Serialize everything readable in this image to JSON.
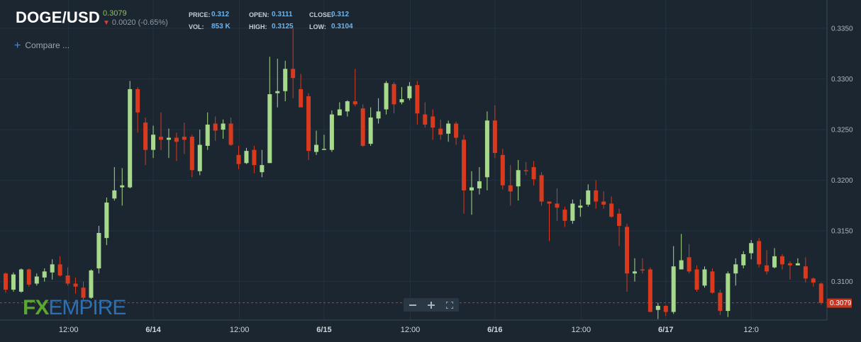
{
  "header": {
    "symbol": "DOGE/USD",
    "last_price": "0.3079",
    "change": "0.0020 (-0.65%)",
    "price_label": "PRICE:",
    "price_value": "0.312",
    "open_label": "OPEN:",
    "open_value": "0.3111",
    "close_label": "CLOSE:",
    "close_value": "0.312",
    "vol_label": "VOL:",
    "vol_value": "853 K",
    "high_label": "HIGH:",
    "high_value": "0.3125",
    "low_label": "LOW:",
    "low_value": "0.3104"
  },
  "compare_label": "Compare ...",
  "logo": {
    "fx": "FX",
    "empire": "EMPIRE"
  },
  "zoom": {
    "minus_icon": "minus-icon",
    "plus_icon": "plus-icon",
    "fit_icon": "fullscreen-icon"
  },
  "colors": {
    "background": "#1b2631",
    "grid": "#243240",
    "up": "#a6d98b",
    "down": "#d93a1e",
    "axis_text": "#aab4bd",
    "price_line": "#c0392b",
    "price_tag": "#c8341e"
  },
  "chart_data": {
    "type": "candlestick",
    "ylim": [
      0.3062,
      0.3378
    ],
    "yticks": [
      "0.3100",
      "0.3150",
      "0.3200",
      "0.3250",
      "0.3300",
      "0.3350"
    ],
    "xticks": [
      "12:00",
      "6/14",
      "12:00",
      "6/15",
      "12:00",
      "6/16",
      "12:00",
      "6/17",
      "12:0"
    ],
    "xtick_index": [
      8.1,
      19,
      30.1,
      41,
      52.1,
      63,
      74.1,
      85,
      96
    ],
    "last_price_label": "0.3079",
    "last_price_value": 0.3079,
    "candles": [
      [
        0.3108,
        0.3092,
        0.3109,
        0.3089
      ],
      [
        0.3092,
        0.3107,
        0.3109,
        0.309
      ],
      [
        0.309,
        0.3112,
        0.3113,
        0.3089
      ],
      [
        0.3112,
        0.3097,
        0.3113,
        0.3095
      ],
      [
        0.3098,
        0.3105,
        0.3108,
        0.3096
      ],
      [
        0.3104,
        0.311,
        0.3113,
        0.31
      ],
      [
        0.3109,
        0.3117,
        0.3122,
        0.3102
      ],
      [
        0.3117,
        0.3106,
        0.3125,
        0.3105
      ],
      [
        0.3106,
        0.3098,
        0.3114,
        0.3096
      ],
      [
        0.3098,
        0.3095,
        0.3104,
        0.3088
      ],
      [
        0.3094,
        0.3084,
        0.31,
        0.3082
      ],
      [
        0.3084,
        0.3111,
        0.3112,
        0.3083
      ],
      [
        0.3113,
        0.3148,
        0.3155,
        0.3108
      ],
      [
        0.3143,
        0.3178,
        0.3183,
        0.3136
      ],
      [
        0.3182,
        0.319,
        0.3213,
        0.318
      ],
      [
        0.3193,
        0.3195,
        0.3212,
        0.3175
      ],
      [
        0.3193,
        0.329,
        0.3298,
        0.3192
      ],
      [
        0.329,
        0.3267,
        0.3292,
        0.3247
      ],
      [
        0.3257,
        0.323,
        0.3262,
        0.3215
      ],
      [
        0.323,
        0.3245,
        0.3254,
        0.3222
      ],
      [
        0.3243,
        0.324,
        0.3267,
        0.323
      ],
      [
        0.324,
        0.3242,
        0.3251,
        0.3222
      ],
      [
        0.3242,
        0.3238,
        0.3247,
        0.3219
      ],
      [
        0.3243,
        0.324,
        0.3257,
        0.3226
      ],
      [
        0.3243,
        0.321,
        0.3245,
        0.3203
      ],
      [
        0.3209,
        0.3235,
        0.325,
        0.3205
      ],
      [
        0.3234,
        0.3255,
        0.3267,
        0.323
      ],
      [
        0.3256,
        0.3249,
        0.3263,
        0.3239
      ],
      [
        0.325,
        0.3256,
        0.326,
        0.3241
      ],
      [
        0.3256,
        0.3235,
        0.3262,
        0.3234
      ],
      [
        0.3225,
        0.3216,
        0.3234,
        0.3211
      ],
      [
        0.3217,
        0.3229,
        0.3232,
        0.3216
      ],
      [
        0.323,
        0.3215,
        0.3234,
        0.3207
      ],
      [
        0.3208,
        0.3215,
        0.323,
        0.3203
      ],
      [
        0.3217,
        0.3285,
        0.3322,
        0.3217
      ],
      [
        0.3286,
        0.3288,
        0.332,
        0.3272
      ],
      [
        0.3288,
        0.331,
        0.3318,
        0.3278
      ],
      [
        0.331,
        0.3301,
        0.335,
        0.3281
      ],
      [
        0.329,
        0.3272,
        0.3305,
        0.3273
      ],
      [
        0.3283,
        0.3229,
        0.3286,
        0.322
      ],
      [
        0.3228,
        0.3235,
        0.3249,
        0.3225
      ],
      [
        0.323,
        0.3231,
        0.3245,
        0.323
      ],
      [
        0.323,
        0.3265,
        0.3269,
        0.3228
      ],
      [
        0.3264,
        0.327,
        0.3277,
        0.3264
      ],
      [
        0.3268,
        0.3278,
        0.3279,
        0.3263
      ],
      [
        0.3278,
        0.3275,
        0.331,
        0.3273
      ],
      [
        0.3271,
        0.3234,
        0.3275,
        0.3233
      ],
      [
        0.3236,
        0.3262,
        0.3272,
        0.3234
      ],
      [
        0.3261,
        0.3268,
        0.3281,
        0.3256
      ],
      [
        0.327,
        0.3296,
        0.3298,
        0.3265
      ],
      [
        0.3295,
        0.3275,
        0.3297,
        0.3266
      ],
      [
        0.3277,
        0.328,
        0.3292,
        0.3275
      ],
      [
        0.3281,
        0.3293,
        0.3297,
        0.3279
      ],
      [
        0.3294,
        0.3266,
        0.3298,
        0.3255
      ],
      [
        0.3265,
        0.3255,
        0.3277,
        0.3252
      ],
      [
        0.3263,
        0.3252,
        0.327,
        0.324
      ],
      [
        0.3251,
        0.3245,
        0.326,
        0.324
      ],
      [
        0.3246,
        0.3256,
        0.3259,
        0.3238
      ],
      [
        0.3256,
        0.3242,
        0.3258,
        0.3235
      ],
      [
        0.324,
        0.319,
        0.3245,
        0.3167
      ],
      [
        0.319,
        0.3193,
        0.3209,
        0.3166
      ],
      [
        0.3192,
        0.3199,
        0.3213,
        0.3186
      ],
      [
        0.3203,
        0.3259,
        0.3268,
        0.319
      ],
      [
        0.3259,
        0.3227,
        0.3274,
        0.3222
      ],
      [
        0.3225,
        0.3195,
        0.3231,
        0.3191
      ],
      [
        0.3195,
        0.3189,
        0.3215,
        0.3175
      ],
      [
        0.3194,
        0.321,
        0.322,
        0.318
      ],
      [
        0.321,
        0.3209,
        0.3218,
        0.3205
      ],
      [
        0.3213,
        0.3201,
        0.3219,
        0.3195
      ],
      [
        0.3205,
        0.3179,
        0.3208,
        0.3175
      ],
      [
        0.3179,
        0.3177,
        0.3179,
        0.314
      ],
      [
        0.3177,
        0.3173,
        0.3192,
        0.316
      ],
      [
        0.3171,
        0.316,
        0.3174,
        0.3154
      ],
      [
        0.316,
        0.3177,
        0.3181,
        0.3157
      ],
      [
        0.3173,
        0.3175,
        0.3181,
        0.3164
      ],
      [
        0.3176,
        0.319,
        0.3196,
        0.3174
      ],
      [
        0.319,
        0.3179,
        0.32,
        0.3172
      ],
      [
        0.3179,
        0.3176,
        0.3189,
        0.3172
      ],
      [
        0.3177,
        0.3164,
        0.3184,
        0.3163
      ],
      [
        0.3167,
        0.3155,
        0.3172,
        0.3135
      ],
      [
        0.3154,
        0.3108,
        0.3157,
        0.309
      ],
      [
        0.3108,
        0.311,
        0.3123,
        0.31
      ],
      [
        0.3112,
        0.3111,
        0.3123,
        0.3108
      ],
      [
        0.3112,
        0.307,
        0.3114,
        0.3072
      ],
      [
        0.3072,
        0.3076,
        0.3079,
        0.3063
      ],
      [
        0.3076,
        0.307,
        0.3077,
        0.3066
      ],
      [
        0.307,
        0.3115,
        0.3135,
        0.3068
      ],
      [
        0.3112,
        0.3121,
        0.3147,
        0.312
      ],
      [
        0.3124,
        0.311,
        0.3137,
        0.3108
      ],
      [
        0.3112,
        0.3092,
        0.3116,
        0.309
      ],
      [
        0.3096,
        0.3112,
        0.3115,
        0.3094
      ],
      [
        0.311,
        0.3089,
        0.3113,
        0.3088
      ],
      [
        0.3089,
        0.3071,
        0.3092,
        0.3067
      ],
      [
        0.3071,
        0.3108,
        0.311,
        0.3065
      ],
      [
        0.3108,
        0.3117,
        0.3123,
        0.3096
      ],
      [
        0.3116,
        0.3127,
        0.313,
        0.3113
      ],
      [
        0.3128,
        0.3138,
        0.3141,
        0.3122
      ],
      [
        0.314,
        0.3117,
        0.3143,
        0.3114
      ],
      [
        0.3116,
        0.311,
        0.3131,
        0.3107
      ],
      [
        0.3114,
        0.3125,
        0.3133,
        0.3113
      ],
      [
        0.3125,
        0.3117,
        0.3127,
        0.3112
      ],
      [
        0.3118,
        0.3116,
        0.312,
        0.3102
      ],
      [
        0.3116,
        0.3118,
        0.3123,
        0.3116
      ],
      [
        0.3115,
        0.3103,
        0.3124,
        0.3099
      ],
      [
        0.3103,
        0.3099,
        0.3104,
        0.3095
      ],
      [
        0.3098,
        0.3079,
        0.3099,
        0.3077
      ]
    ]
  }
}
